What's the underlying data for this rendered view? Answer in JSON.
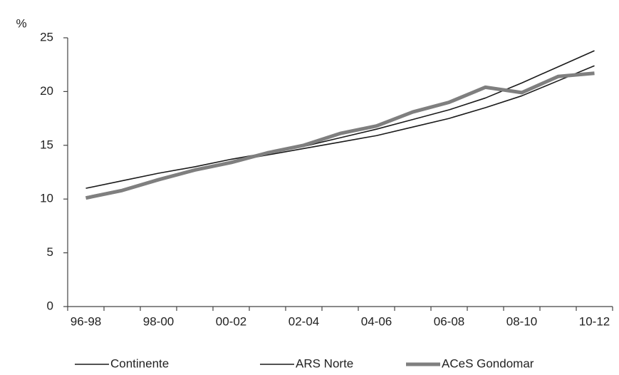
{
  "chart_data": {
    "type": "line",
    "y_label": "%",
    "categories": [
      "96-98",
      null,
      "98-00",
      null,
      "00-02",
      null,
      "02-04",
      null,
      "04-06",
      null,
      "06-08",
      null,
      "08-10",
      null,
      "10-12"
    ],
    "series": [
      {
        "name": "Continente",
        "color": "#1a1a1a",
        "width": 1.6,
        "values": [
          11.0,
          11.7,
          12.4,
          13.0,
          13.7,
          14.3,
          14.9,
          15.7,
          16.5,
          17.4,
          18.3,
          19.4,
          20.8,
          22.3,
          23.8
        ]
      },
      {
        "name": "ARS Norte",
        "color": "#1a1a1a",
        "width": 1.6,
        "values": [
          10.2,
          10.9,
          11.9,
          12.8,
          13.5,
          14.1,
          14.7,
          15.3,
          15.9,
          16.7,
          17.5,
          18.5,
          19.6,
          21.0,
          22.4
        ]
      },
      {
        "name": "ACeS Gondomar",
        "color": "#7f7f7f",
        "width": 5,
        "values": [
          10.1,
          10.8,
          11.8,
          12.7,
          13.4,
          14.3,
          15.0,
          16.1,
          16.8,
          18.1,
          19.0,
          20.4,
          19.9,
          21.4,
          21.7
        ]
      }
    ],
    "ylim": [
      0,
      25
    ],
    "yticks": [
      0,
      5,
      10,
      15,
      20,
      25
    ],
    "grid": false,
    "legend": "bottom"
  }
}
